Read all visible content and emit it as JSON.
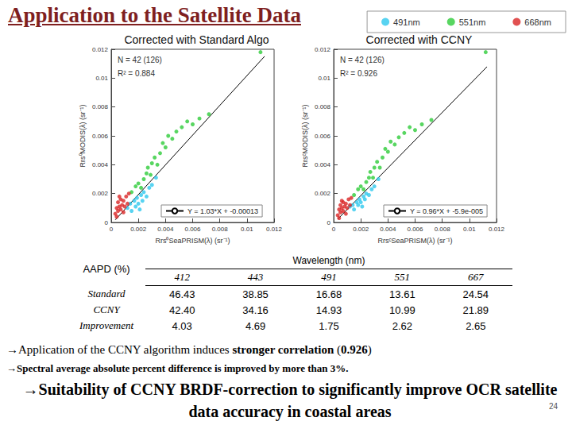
{
  "title": "Application to the Satellite Data",
  "page_number": "24",
  "chart_data": [
    {
      "type": "scatter",
      "title": "Corrected with Standard Algo",
      "x_label": "Rrs⁰SeaPRISM(λ) (sr⁻¹)",
      "y_label": "Rrs⁰MODIS(λ) (sr⁻¹)",
      "xlim": [
        0,
        0.012
      ],
      "ylim": [
        0,
        0.012
      ],
      "xticks": [
        0,
        0.002,
        0.004,
        0.006,
        0.008,
        0.01,
        0.012
      ],
      "yticks": [
        0,
        0.002,
        0.004,
        0.006,
        0.008,
        0.01,
        0.012
      ],
      "grid": false,
      "legend": "upper right",
      "annotations": [
        "N = 42 (126)",
        "R² = 0.884"
      ],
      "series": [
        {
          "name": "491nm",
          "color": "#2ec8ee",
          "marker": "circle",
          "x": [
            0.0012,
            0.0014,
            0.0015,
            0.0017,
            0.0018,
            0.0019,
            0.002,
            0.0022,
            0.0023,
            0.0024,
            0.0026,
            0.0028,
            0.003,
            0.0033,
            0.0021
          ],
          "values": [
            0.001,
            0.0013,
            0.0008,
            0.0015,
            0.0011,
            0.0017,
            0.0013,
            0.0019,
            0.0015,
            0.0021,
            0.0018,
            0.0024,
            0.0026,
            0.0031,
            0.0009
          ]
        },
        {
          "name": "551nm",
          "color": "#2ecc3a",
          "marker": "circle",
          "x": [
            0.0015,
            0.0018,
            0.002,
            0.0022,
            0.0024,
            0.0026,
            0.0027,
            0.0029,
            0.003,
            0.0032,
            0.0034,
            0.0036,
            0.0038,
            0.004,
            0.0042,
            0.0045,
            0.0048,
            0.0052,
            0.0056,
            0.006,
            0.0065,
            0.0072,
            0.011
          ],
          "values": [
            0.0021,
            0.0025,
            0.0027,
            0.0024,
            0.003,
            0.0034,
            0.0038,
            0.0033,
            0.0041,
            0.0045,
            0.004,
            0.0048,
            0.0055,
            0.0052,
            0.006,
            0.0058,
            0.0063,
            0.0066,
            0.007,
            0.0068,
            0.0072,
            0.0075,
            0.0118
          ]
        },
        {
          "name": "668nm",
          "color": "#d92525",
          "marker": "circle",
          "x": [
            0.0003,
            0.0004,
            0.0005,
            0.0005,
            0.0006,
            0.0007,
            0.0007,
            0.0008,
            0.0009,
            0.0009,
            0.001,
            0.0011,
            0.0012,
            0.0004,
            0.0013,
            0.0006
          ],
          "values": [
            0.0006,
            0.001,
            0.0008,
            0.0014,
            0.0011,
            0.0009,
            0.0016,
            0.0012,
            0.0007,
            0.0015,
            0.0011,
            0.0018,
            0.0013,
            0.0004,
            0.002,
            0.0018
          ]
        },
        {
          "name": "Y = 1.03*X + -0.00013",
          "type": "line",
          "color": "#000000",
          "line_style": "solid",
          "x": [
            0.0003,
            0.0113
          ],
          "values": [
            0.000179,
            0.011509
          ]
        }
      ]
    },
    {
      "type": "scatter",
      "title": "Corrected with CCNY",
      "x_label": "RrsᶜSeaPRISM(λ) (sr⁻¹)",
      "y_label": "RrsᶜMODIS(λ) (sr⁻¹)",
      "xlim": [
        0,
        0.012
      ],
      "ylim": [
        0,
        0.012
      ],
      "xticks": [
        0,
        0.002,
        0.004,
        0.006,
        0.008,
        0.01,
        0.012
      ],
      "yticks": [
        0,
        0.002,
        0.004,
        0.006,
        0.008,
        0.01,
        0.012
      ],
      "grid": false,
      "annotations": [
        "N = 42 (126)",
        "R² = 0.926"
      ],
      "series": [
        {
          "name": "491nm",
          "color": "#2ec8ee",
          "marker": "circle",
          "x": [
            0.0012,
            0.0014,
            0.0015,
            0.0017,
            0.0018,
            0.0019,
            0.002,
            0.0022,
            0.0023,
            0.0024,
            0.0026,
            0.0028,
            0.003,
            0.0033,
            0.0021
          ],
          "values": [
            0.0011,
            0.0012,
            0.0009,
            0.0014,
            0.0012,
            0.0016,
            0.0014,
            0.0018,
            0.0016,
            0.002,
            0.0019,
            0.0023,
            0.0025,
            0.003,
            0.0011
          ]
        },
        {
          "name": "551nm",
          "color": "#2ecc3a",
          "marker": "circle",
          "x": [
            0.0015,
            0.0018,
            0.002,
            0.0022,
            0.0024,
            0.0026,
            0.0027,
            0.0029,
            0.003,
            0.0032,
            0.0034,
            0.0036,
            0.0038,
            0.004,
            0.0042,
            0.0045,
            0.0048,
            0.0052,
            0.0056,
            0.006,
            0.0065,
            0.0072,
            0.0112
          ],
          "values": [
            0.0019,
            0.0023,
            0.0025,
            0.0023,
            0.0028,
            0.0031,
            0.0035,
            0.0031,
            0.0038,
            0.0042,
            0.0038,
            0.0045,
            0.0051,
            0.0049,
            0.0056,
            0.0054,
            0.0059,
            0.0062,
            0.0066,
            0.0064,
            0.0068,
            0.0071,
            0.0118
          ]
        },
        {
          "name": "668nm",
          "color": "#d92525",
          "marker": "circle",
          "x": [
            0.0003,
            0.0004,
            0.0005,
            0.0005,
            0.0006,
            0.0007,
            0.0007,
            0.0008,
            0.0009,
            0.0009,
            0.001,
            0.0011,
            0.0012,
            0.0004,
            0.0013,
            0.0006
          ],
          "values": [
            0.0005,
            0.0009,
            0.0007,
            0.0012,
            0.001,
            0.0008,
            0.0014,
            0.0011,
            0.0006,
            0.0013,
            0.001,
            0.0016,
            0.0012,
            0.0003,
            0.0017,
            0.0015
          ]
        },
        {
          "name": "Y = 0.96*X + -5.9e-005",
          "type": "line",
          "color": "#000000",
          "line_style": "solid",
          "x": [
            0.0003,
            0.0113
          ],
          "values": [
            0.000229,
            0.010789
          ]
        }
      ]
    }
  ],
  "table": {
    "row_header": "AAPD (%)",
    "column_header": "Wavelength (nm)",
    "columns": [
      "412",
      "443",
      "491",
      "551",
      "667"
    ],
    "rows": [
      {
        "label": "Standard",
        "cells": [
          "46.43",
          "38.85",
          "16.68",
          "13.61",
          "24.54"
        ]
      },
      {
        "label": "CCNY",
        "cells": [
          "42.40",
          "34.16",
          "14.93",
          "10.99",
          "21.89"
        ]
      },
      {
        "label": "Improvement",
        "cells": [
          "4.03",
          "4.69",
          "1.75",
          "2.62",
          "2.65"
        ]
      }
    ]
  },
  "bullets": [
    [
      "→Application of the CCNY algorithm induces ",
      "stronger correlation",
      " (",
      "0.926",
      ")"
    ],
    [
      "→Spectral average absolute percent difference is improved by more than 3%."
    ],
    [
      "→Suitability of CCNY BRDF-correction to significantly improve OCR satellite data accuracy in coastal areas"
    ]
  ]
}
